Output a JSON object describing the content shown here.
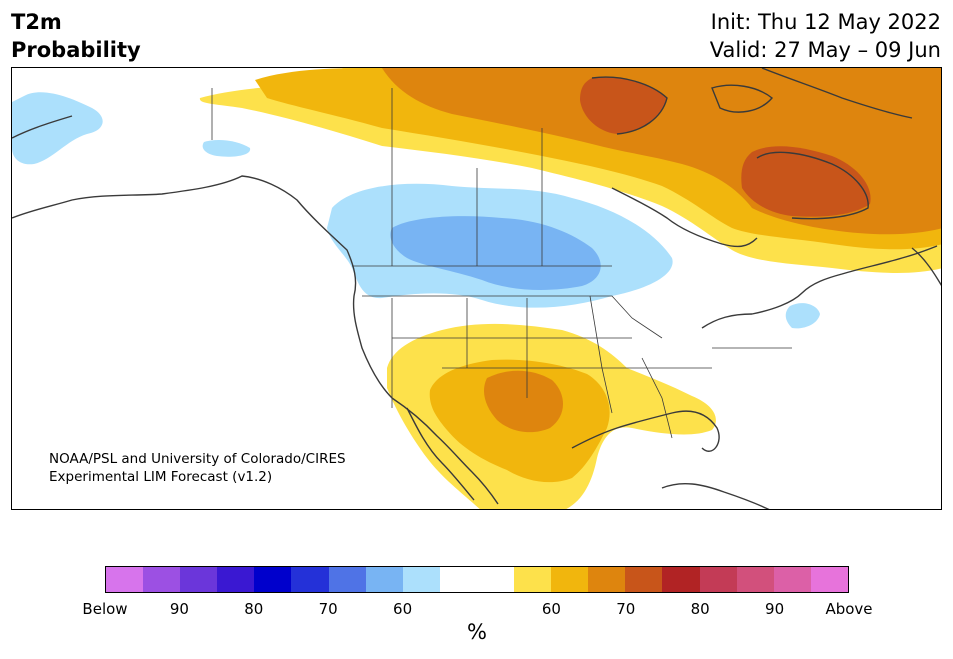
{
  "header": {
    "title_line1": "T2m",
    "title_line2": "Probability",
    "init": "Init: Thu 12 May 2022",
    "valid": "Valid: 27 May – 09 Jun"
  },
  "credit": {
    "line1": "NOAA/PSL and University of Colorado/CIRES",
    "line2": "Experimental LIM Forecast (v1.2)"
  },
  "colors": {
    "below_60": "#ace0fc",
    "below_70": "#78b4f3",
    "above_60": "#fde14b",
    "above_70": "#f1b60d",
    "above_80": "#de850e",
    "above_90": "#c8551a",
    "coast": "#3a3a3a"
  },
  "colorbar": {
    "colors": [
      "#d774ec",
      "#9c50e3",
      "#6b36da",
      "#3a18d2",
      "#0000cc",
      "#2431d8",
      "#4f73e6",
      "#78b4f3",
      "#ace0fc",
      "#ffffff",
      "#ffffff",
      "#fde14b",
      "#f1b60d",
      "#de850e",
      "#c8551a",
      "#b12324",
      "#c33b56",
      "#d2507c",
      "#dc60a7",
      "#e773db"
    ],
    "tick_labels": [
      "Below",
      "90",
      "80",
      "70",
      "60",
      "60",
      "70",
      "80",
      "90",
      "Above"
    ],
    "unit": "%"
  }
}
